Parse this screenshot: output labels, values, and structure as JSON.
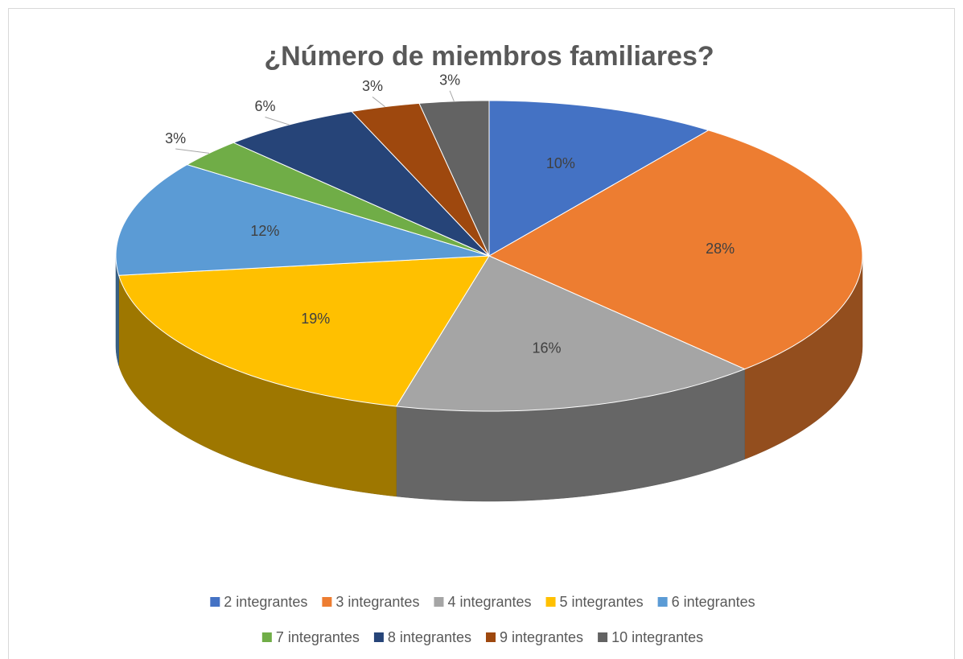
{
  "chart_data": {
    "type": "pie",
    "title": "¿Número de miembros familiares?",
    "categories": [
      "2 integrantes",
      "3 integrantes",
      "4 integrantes",
      "5 integrantes",
      "6 integrantes",
      "7 integrantes",
      "8 integrantes",
      "9 integrantes",
      "10 integrantes"
    ],
    "values": [
      10,
      28,
      16,
      19,
      12,
      3,
      6,
      3,
      3
    ],
    "value_labels": [
      "10%",
      "28%",
      "16%",
      "19%",
      "12%",
      "3%",
      "6%",
      "3%",
      "3%"
    ],
    "colors": [
      "#4472c4",
      "#ed7d31",
      "#a5a5a5",
      "#ffc000",
      "#5b9bd5",
      "#70ad47",
      "#264478",
      "#9e480e",
      "#636363"
    ],
    "legend": "bottom"
  }
}
